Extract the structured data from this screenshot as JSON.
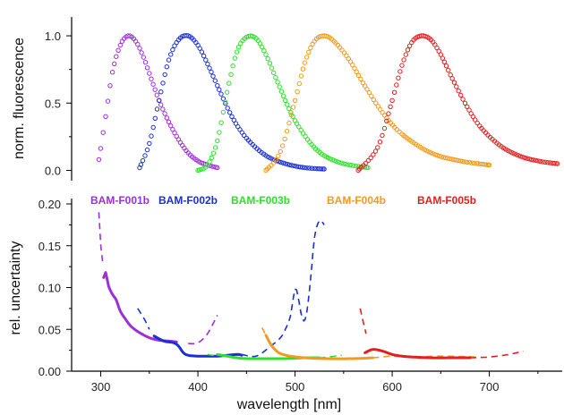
{
  "colors": {
    "F001": "#9b30d6",
    "F002": "#1a2fd4",
    "F003": "#2ee02a",
    "F004": "#f29a1f",
    "F005": "#e21f1f",
    "axis": "#000000"
  },
  "chart_data": [
    {
      "type": "scatter",
      "panel": "top",
      "xlim": [
        270,
        775
      ],
      "ylim": [
        -0.05,
        1.1
      ],
      "xticks": [],
      "yticks": [
        0.0,
        0.5,
        1.0
      ],
      "ytick_labels": [
        "0.0",
        "0.5",
        "1.0"
      ],
      "xlabel": "",
      "ylabel": "norm. fluorescence",
      "grid": false,
      "series": [
        {
          "key": "F001",
          "x": [
            298,
            305,
            312,
            320,
            328,
            336,
            344,
            352,
            360,
            370,
            380,
            390,
            400,
            410,
            420
          ],
          "y": [
            0.08,
            0.4,
            0.73,
            0.93,
            1.0,
            0.96,
            0.84,
            0.68,
            0.52,
            0.36,
            0.23,
            0.13,
            0.07,
            0.04,
            0.02
          ]
        },
        {
          "key": "F002",
          "x": [
            340,
            350,
            360,
            370,
            380,
            390,
            400,
            410,
            420,
            435,
            450,
            470,
            490,
            510,
            530
          ],
          "y": [
            0.02,
            0.2,
            0.52,
            0.82,
            0.97,
            1.0,
            0.93,
            0.79,
            0.63,
            0.4,
            0.24,
            0.11,
            0.05,
            0.02,
            0.01
          ]
        },
        {
          "key": "F003",
          "x": [
            400,
            410,
            420,
            430,
            440,
            450,
            460,
            470,
            480,
            490,
            500,
            515,
            530,
            550,
            575
          ],
          "y": [
            0.0,
            0.04,
            0.22,
            0.58,
            0.88,
            0.99,
            0.98,
            0.86,
            0.69,
            0.52,
            0.37,
            0.21,
            0.11,
            0.05,
            0.02
          ]
        },
        {
          "key": "F004",
          "x": [
            470,
            485,
            500,
            510,
            520,
            530,
            540,
            555,
            570,
            590,
            610,
            640,
            670,
            700
          ],
          "y": [
            0.0,
            0.14,
            0.52,
            0.8,
            0.96,
            1.0,
            0.96,
            0.83,
            0.65,
            0.43,
            0.27,
            0.13,
            0.07,
            0.04
          ]
        },
        {
          "key": "F005",
          "x": [
            565,
            585,
            600,
            610,
            620,
            630,
            640,
            650,
            660,
            675,
            690,
            710,
            730,
            750,
            770
          ],
          "y": [
            0.0,
            0.17,
            0.52,
            0.78,
            0.95,
            1.0,
            0.97,
            0.86,
            0.71,
            0.5,
            0.33,
            0.19,
            0.11,
            0.07,
            0.05
          ]
        }
      ]
    },
    {
      "type": "line",
      "panel": "bottom",
      "xlim": [
        270,
        775
      ],
      "ylim": [
        0,
        0.2
      ],
      "xticks": [
        300,
        400,
        500,
        600,
        700
      ],
      "xtick_labels": [
        "300",
        "400",
        "500",
        "600",
        "700"
      ],
      "yticks": [
        0.0,
        0.05,
        0.1,
        0.15,
        0.2
      ],
      "ytick_labels": [
        "0.00",
        "0.05",
        "0.10",
        "0.15",
        "0.20"
      ],
      "xlabel": "wavelength [nm]",
      "ylabel": "rel. uncertainty",
      "grid": false,
      "legend": [
        {
          "key": "F001",
          "label": "BAM-F001b"
        },
        {
          "key": "F002",
          "label": "BAM-F002b"
        },
        {
          "key": "F003",
          "label": "BAM-F003b"
        },
        {
          "key": "F004",
          "label": "BAM-F004b"
        },
        {
          "key": "F005",
          "label": "BAM-F005b"
        }
      ],
      "legend_placement": "top",
      "series": [
        {
          "key": "F001",
          "part": "solid",
          "x": [
            303,
            305,
            308,
            312,
            316,
            320,
            325,
            330,
            335,
            340,
            350,
            360,
            370,
            378
          ],
          "y": [
            0.112,
            0.118,
            0.102,
            0.092,
            0.085,
            0.072,
            0.063,
            0.055,
            0.05,
            0.046,
            0.04,
            0.037,
            0.036,
            0.035
          ]
        },
        {
          "key": "F001",
          "part": "dash",
          "x": [
            298,
            300,
            302
          ],
          "y": [
            0.19,
            0.15,
            0.13
          ]
        },
        {
          "key": "F001",
          "part": "dash",
          "x": [
            390,
            400,
            410,
            420
          ],
          "y": [
            0.033,
            0.034,
            0.045,
            0.067
          ]
        },
        {
          "key": "F002",
          "part": "solid",
          "x": [
            355,
            365,
            375,
            380,
            385,
            390,
            400,
            420,
            440,
            445
          ],
          "y": [
            0.042,
            0.036,
            0.034,
            0.03,
            0.022,
            0.019,
            0.018,
            0.018,
            0.02,
            0.019
          ]
        },
        {
          "key": "F002",
          "part": "dash",
          "x": [
            338,
            345,
            350
          ],
          "y": [
            0.075,
            0.062,
            0.05
          ]
        },
        {
          "key": "F002",
          "part": "dash",
          "x": [
            445,
            460,
            475,
            485,
            490,
            495,
            500,
            503,
            506,
            509,
            512,
            516,
            520,
            525,
            530
          ],
          "y": [
            0.02,
            0.018,
            0.03,
            0.04,
            0.05,
            0.065,
            0.098,
            0.09,
            0.07,
            0.06,
            0.07,
            0.11,
            0.16,
            0.18,
            0.175
          ]
        },
        {
          "key": "F003",
          "part": "solid",
          "x": [
            420,
            430,
            440,
            450,
            470,
            490,
            510,
            525
          ],
          "y": [
            0.02,
            0.018,
            0.016,
            0.015,
            0.015,
            0.015,
            0.016,
            0.016
          ]
        },
        {
          "key": "F003",
          "part": "dash",
          "x": [
            410,
            415,
            420
          ],
          "y": [
            0.02,
            0.019,
            0.019
          ]
        },
        {
          "key": "F003",
          "part": "dash",
          "x": [
            525,
            535,
            548
          ],
          "y": [
            0.016,
            0.017,
            0.019
          ]
        },
        {
          "key": "F004",
          "part": "solid",
          "x": [
            470,
            475,
            480,
            485,
            495,
            510,
            530,
            560,
            580
          ],
          "y": [
            0.043,
            0.032,
            0.025,
            0.021,
            0.018,
            0.016,
            0.015,
            0.015,
            0.016
          ]
        },
        {
          "key": "F004",
          "part": "dash",
          "x": [
            466,
            470
          ],
          "y": [
            0.052,
            0.043
          ]
        },
        {
          "key": "F004",
          "part": "dash",
          "x": [
            580,
            590,
            600,
            620,
            650,
            690
          ],
          "y": [
            0.016,
            0.017,
            0.018,
            0.017,
            0.018,
            0.017
          ]
        },
        {
          "key": "F005",
          "part": "solid",
          "x": [
            572,
            580,
            590,
            600,
            610,
            620,
            640,
            660,
            680
          ],
          "y": [
            0.022,
            0.026,
            0.024,
            0.02,
            0.018,
            0.017,
            0.016,
            0.016,
            0.016
          ]
        },
        {
          "key": "F005",
          "part": "dash",
          "x": [
            567,
            570,
            573
          ],
          "y": [
            0.075,
            0.06,
            0.045
          ]
        },
        {
          "key": "F005",
          "part": "dash",
          "x": [
            680,
            700,
            720,
            735
          ],
          "y": [
            0.016,
            0.017,
            0.02,
            0.024
          ]
        }
      ]
    }
  ]
}
